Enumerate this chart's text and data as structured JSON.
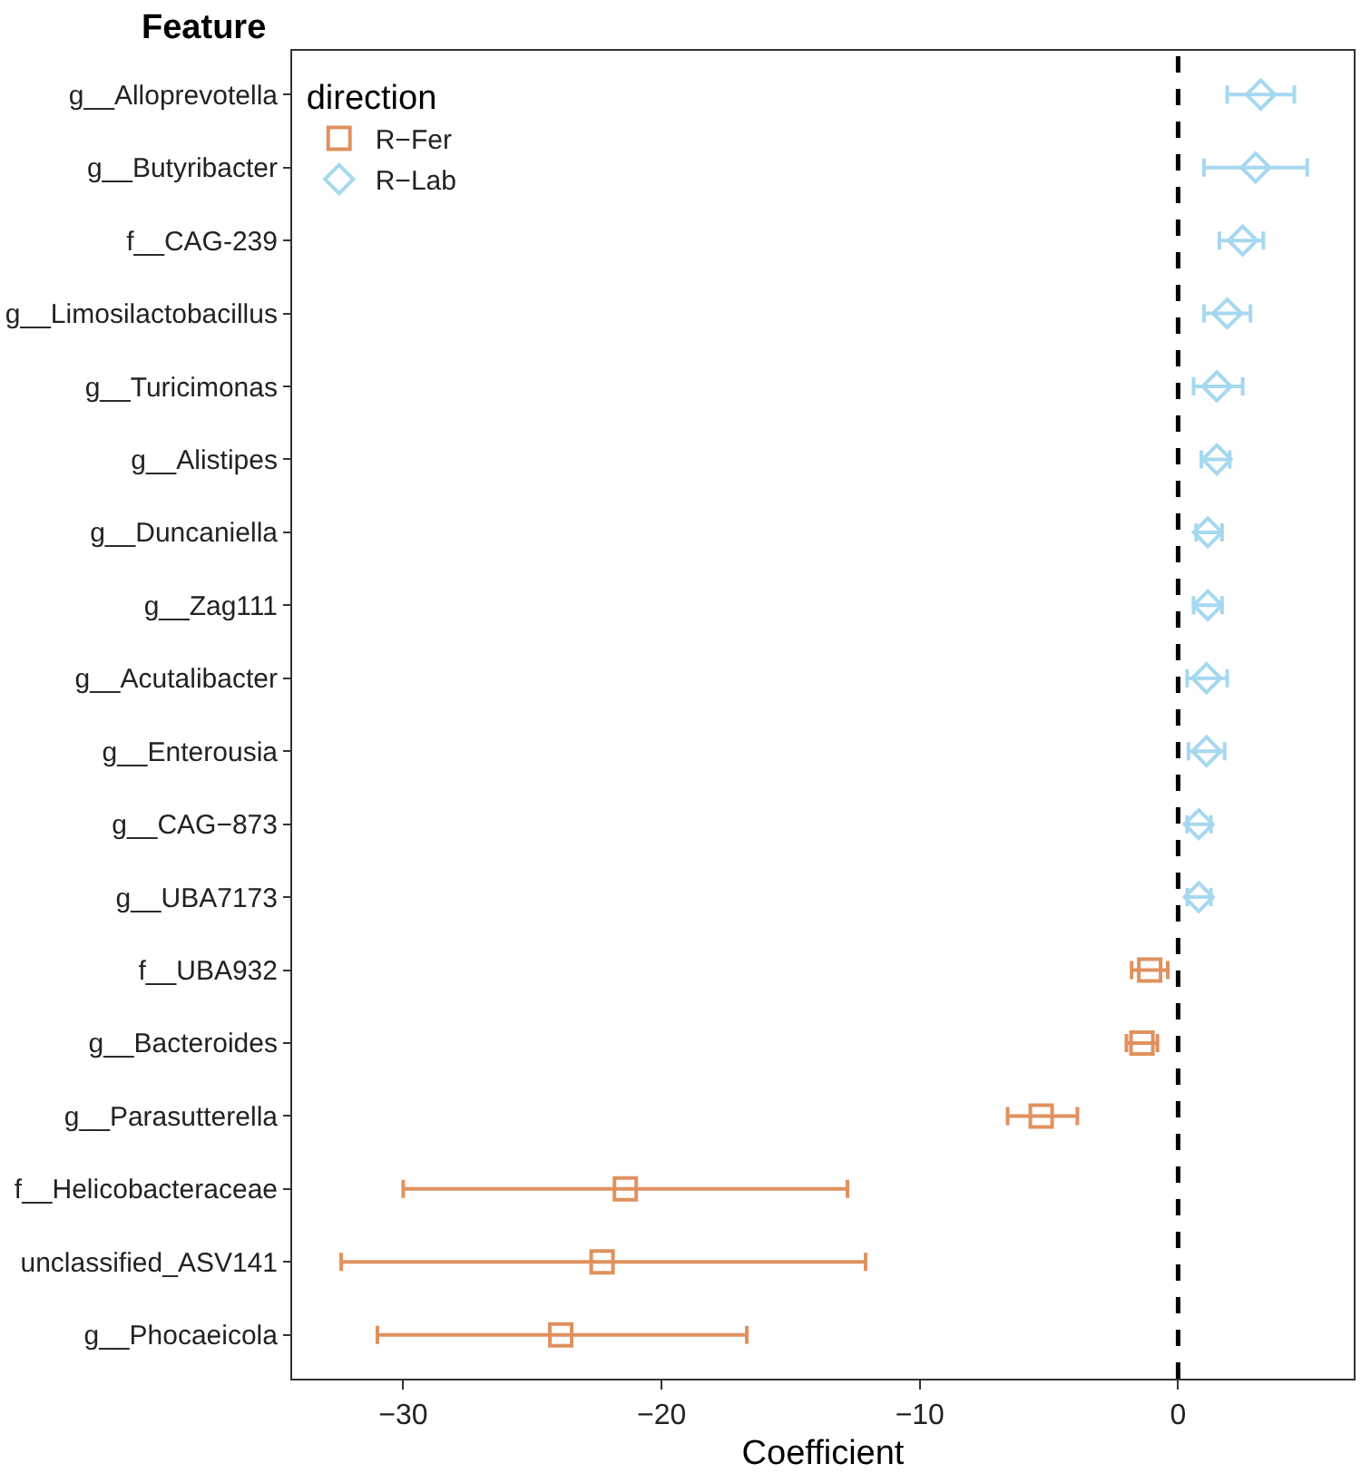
{
  "chart_data": {
    "type": "scatter",
    "orientation": "horizontal",
    "xlabel": "Coefficient",
    "ylabel": "Feature",
    "legend_title": "direction",
    "legend": "top left",
    "grid": false,
    "categories": [
      "g__Alloprevotella",
      "g__Butyribacter",
      "f__CAG-239",
      "g__Limosilactobacillus",
      "g__Turicimonas",
      "g__Alistipes",
      "g__Duncaniella",
      "g__Zag111",
      "g__Acutalibacter",
      "g__Enterousia",
      "g__CAG−873",
      "g__UBA7173",
      "f__UBA932",
      "g__Bacteroides",
      "g__Parasutterella",
      "f__Helicobacteraceae",
      "unclassified_ASV141",
      "g__Phocaeicola"
    ],
    "xlim": [
      -34.3,
      6.8
    ],
    "xticks": [
      -30,
      -20,
      -10,
      0
    ],
    "series": [
      {
        "name": "R−Fer",
        "color": "#e0915e",
        "marker": "square",
        "values": [
          null,
          null,
          null,
          null,
          null,
          null,
          null,
          null,
          null,
          null,
          null,
          null,
          -1.1,
          -1.4,
          -5.3,
          -21.4,
          -22.3,
          -23.9
        ],
        "errors": [
          null,
          null,
          null,
          null,
          null,
          null,
          null,
          null,
          null,
          null,
          null,
          null,
          [
            -1.8,
            -0.4
          ],
          [
            -2.0,
            -0.8
          ],
          [
            -6.6,
            -3.9
          ],
          [
            -30.0,
            -12.8
          ],
          [
            -32.4,
            -12.1
          ],
          [
            -31.0,
            -16.7
          ]
        ]
      },
      {
        "name": "R−Lab",
        "color": "#a6d8f0",
        "marker": "diamond",
        "values": [
          3.2,
          3.0,
          2.5,
          1.9,
          1.5,
          1.5,
          1.15,
          1.15,
          1.1,
          1.1,
          0.8,
          0.8,
          null,
          null,
          null,
          null,
          null,
          null
        ],
        "errors": [
          [
            1.9,
            4.5
          ],
          [
            1.0,
            5.0
          ],
          [
            1.6,
            3.3
          ],
          [
            1.0,
            2.8
          ],
          [
            0.6,
            2.5
          ],
          [
            0.9,
            2.0
          ],
          [
            0.7,
            1.7
          ],
          [
            0.6,
            1.7
          ],
          [
            0.35,
            1.9
          ],
          [
            0.4,
            1.8
          ],
          [
            0.35,
            1.27
          ],
          [
            0.36,
            1.27
          ],
          null,
          null,
          null,
          null,
          null,
          null
        ]
      }
    ],
    "ref_lines": [
      {
        "axis": "x",
        "value": 0,
        "color": "#000000",
        "line_style": "dashed"
      }
    ]
  }
}
